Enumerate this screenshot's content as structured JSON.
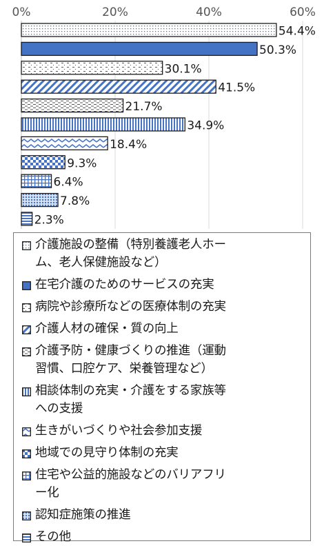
{
  "chart_data": {
    "type": "bar",
    "orientation": "horizontal",
    "categories": [
      "介護施設の整備（特別養護老人ホーム、老人保健施設など）",
      "在宅介護のためのサービスの充実",
      "病院や診療所などの医療体制の充実",
      "介護人材の確保・質の向上",
      "介護予防・健康づくりの推進（運動習慣、口腔ケア、栄養管理など）",
      "相談体制の充実・介護をする家族等への支援",
      "生きがいづくりや社会参加支援",
      "地域での見守り体制の充実",
      "住宅や公益的施設などのバリアフリー化",
      "認知症施策の推進",
      "その他"
    ],
    "values": [
      54.4,
      50.3,
      30.1,
      41.5,
      21.7,
      34.9,
      18.4,
      9.3,
      6.4,
      7.8,
      2.3
    ],
    "value_labels": [
      "54.4%",
      "50.3%",
      "30.1%",
      "41.5%",
      "21.7%",
      "34.9%",
      "18.4%",
      "9.3%",
      "6.4%",
      "7.8%",
      "2.3%"
    ],
    "xlim": [
      0,
      60
    ],
    "ticks": [
      "0%",
      "20%",
      "40%",
      "60%"
    ],
    "grid": true,
    "legend_position": "bottom",
    "colors": {
      "bar_blue": "#4472c4",
      "bar_light": "#9dc3e6",
      "outline": "#1a1a1a",
      "grid": "#d9d9d9"
    },
    "patterns": [
      "dots",
      "solid",
      "dash-dots",
      "diagonal",
      "dashes",
      "vertical",
      "zigzag",
      "checker",
      "grid",
      "dense-dots",
      "horizontal"
    ]
  },
  "legend": {
    "lines": [
      [
        "介護施設の整備（特別養護老人ホー",
        "ム、老人保健施設など）"
      ],
      [
        "在宅介護のためのサービスの充実"
      ],
      [
        "病院や診療所などの医療体制の充実"
      ],
      [
        "介護人材の確保・質の向上"
      ],
      [
        "介護予防・健康づくりの推進（運動",
        "習慣、口腔ケア、栄養管理など）"
      ],
      [
        "相談体制の充実・介護をする家族等",
        "への支援"
      ],
      [
        "生きがいづくりや社会参加支援"
      ],
      [
        "地域での見守り体制の充実"
      ],
      [
        "住宅や公益的施設などのバリアフリ",
        "ー化"
      ],
      [
        "認知症施策の推進"
      ],
      [
        "その他"
      ]
    ]
  }
}
